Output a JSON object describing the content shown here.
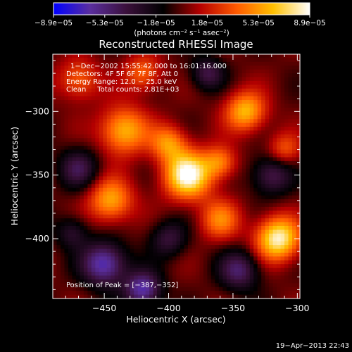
{
  "chart_data": {
    "type": "heatmap",
    "title": "Reconstructed RHESSI Image",
    "xlabel": "Heliocentric X (arcsec)",
    "ylabel": "Heliocentric Y (arcsec)",
    "xlim": [
      -490,
      -298
    ],
    "ylim": [
      -447,
      -255
    ],
    "x_ticks": [
      -450,
      -400,
      -350,
      -300
    ],
    "x_tick_labels": [
      "−450",
      "−400",
      "−350",
      "−300"
    ],
    "y_ticks": [
      -400,
      -350,
      -300
    ],
    "y_tick_labels": [
      "−400",
      "−350",
      "−300"
    ],
    "colorbar": {
      "min": -8.9e-05,
      "max": 8.9e-05,
      "tick_labels": [
        "−8.9e−05",
        "−5.3e−05",
        "−1.8e−05",
        "1.8e−05",
        "5.3e−05",
        "8.9e−05"
      ],
      "unit_label": "(photons cm⁻² s⁻¹ asec⁻²)",
      "colors": [
        "#0000ff",
        "#5a2e9e",
        "#3a103a",
        "#000000",
        "#b40000",
        "#ff5a00",
        "#ffc000",
        "#ffffff"
      ]
    },
    "annotations": [
      "1−Dec−2002 15:55:42.000 to 16:01:16.000",
      "Detectors: 4F 5F 6F 7F 8F, Att 0",
      "Energy Range: 12.0 − 25.0 keV",
      "Clean     Total counts: 2.81E+03"
    ],
    "peak_label": "Position of Peak = [−387,−352]",
    "peak": {
      "x": -387,
      "y": -352
    },
    "sources": [
      {
        "x": -385,
        "y": -350,
        "amp": 1.0,
        "sigma": 13
      },
      {
        "x": -315,
        "y": -400,
        "amp": 0.95,
        "sigma": 12
      },
      {
        "x": -445,
        "y": -370,
        "amp": 0.65,
        "sigma": 12
      },
      {
        "x": -340,
        "y": -300,
        "amp": 0.7,
        "sigma": 11
      },
      {
        "x": -435,
        "y": -315,
        "amp": 0.7,
        "sigma": 13
      },
      {
        "x": -400,
        "y": -325,
        "amp": 0.55,
        "sigma": 10
      },
      {
        "x": -360,
        "y": -385,
        "amp": 0.5,
        "sigma": 11
      },
      {
        "x": -470,
        "y": -275,
        "amp": 0.45,
        "sigma": 11
      },
      {
        "x": -360,
        "y": -340,
        "amp": 0.5,
        "sigma": 9
      },
      {
        "x": -310,
        "y": -330,
        "amp": 0.4,
        "sigma": 9
      },
      {
        "x": -420,
        "y": -270,
        "amp": 0.45,
        "sigma": 10
      },
      {
        "x": -450,
        "y": -420,
        "amp": -0.8,
        "sigma": 12
      },
      {
        "x": -420,
        "y": -440,
        "amp": -0.75,
        "sigma": 10
      },
      {
        "x": -345,
        "y": -425,
        "amp": -0.55,
        "sigma": 11
      },
      {
        "x": -320,
        "y": -350,
        "amp": -0.5,
        "sigma": 11
      },
      {
        "x": -370,
        "y": -270,
        "amp": -0.45,
        "sigma": 9
      },
      {
        "x": -470,
        "y": -345,
        "amp": -0.45,
        "sigma": 11
      },
      {
        "x": -400,
        "y": -400,
        "amp": -0.4,
        "sigma": 10
      },
      {
        "x": -475,
        "y": -395,
        "amp": -0.35,
        "sigma": 9
      }
    ]
  },
  "timestamp": "19−Apr−2013 22:43"
}
